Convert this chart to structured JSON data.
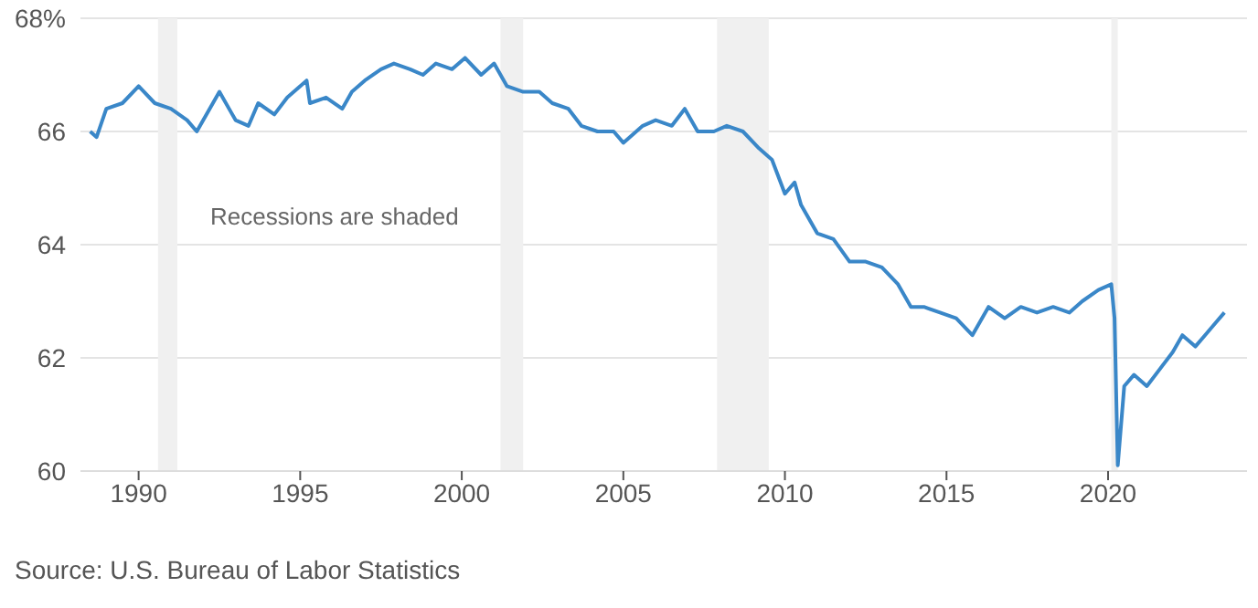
{
  "chart_data": {
    "type": "line",
    "x": [
      1988.5,
      1988.7,
      1989.0,
      1989.5,
      1990.0,
      1990.5,
      1991.0,
      1991.5,
      1991.8,
      1992.5,
      1993.0,
      1993.4,
      1993.7,
      1994.2,
      1994.6,
      1995.2,
      1995.3,
      1995.8,
      1996.3,
      1996.6,
      1997.0,
      1997.5,
      1997.9,
      1998.4,
      1998.8,
      1999.2,
      1999.7,
      2000.1,
      2000.6,
      2001.0,
      2001.4,
      2001.9,
      2002.4,
      2002.8,
      2003.3,
      2003.7,
      2004.2,
      2004.7,
      2005.0,
      2005.6,
      2006.0,
      2006.5,
      2006.9,
      2007.3,
      2007.8,
      2008.2,
      2008.7,
      2009.2,
      2009.6,
      2010.0,
      2010.3,
      2010.5,
      2011.0,
      2011.5,
      2012.0,
      2012.5,
      2013.0,
      2013.5,
      2013.9,
      2014.3,
      2014.8,
      2015.3,
      2015.8,
      2016.3,
      2016.8,
      2017.3,
      2017.8,
      2018.3,
      2018.8,
      2019.2,
      2019.7,
      2020.1,
      2020.2,
      2020.3,
      2020.5,
      2020.8,
      2021.2,
      2021.6,
      2022.0,
      2022.3,
      2022.7,
      2023.0,
      2023.3,
      2023.6
    ],
    "series": [
      {
        "color": "#3a87c8",
        "values": [
          66.0,
          65.9,
          66.4,
          66.5,
          66.8,
          66.5,
          66.4,
          66.2,
          66.0,
          66.7,
          66.2,
          66.1,
          66.5,
          66.3,
          66.6,
          66.9,
          66.5,
          66.6,
          66.4,
          66.7,
          66.9,
          67.1,
          67.2,
          67.1,
          67.0,
          67.2,
          67.1,
          67.3,
          67.0,
          67.2,
          66.8,
          66.7,
          66.7,
          66.5,
          66.4,
          66.1,
          66.0,
          66.0,
          65.8,
          66.1,
          66.2,
          66.1,
          66.4,
          66.0,
          66.0,
          66.1,
          66.0,
          65.7,
          65.5,
          64.9,
          65.1,
          64.7,
          64.2,
          64.1,
          63.7,
          63.7,
          63.6,
          63.3,
          62.9,
          62.9,
          62.8,
          62.7,
          62.4,
          62.9,
          62.7,
          62.9,
          62.8,
          62.9,
          62.8,
          63.0,
          63.2,
          63.3,
          62.7,
          60.1,
          61.5,
          61.7,
          61.5,
          61.8,
          62.1,
          62.4,
          62.2,
          62.4,
          62.6,
          62.8
        ]
      }
    ],
    "xlim": [
      1988.2,
      2024.3
    ],
    "xticks": [
      1990,
      1995,
      2000,
      2005,
      2010,
      2015,
      2020
    ],
    "ylim": [
      60,
      68
    ],
    "yticks": [
      60,
      62,
      64,
      66,
      {
        "value": 68,
        "label": "68%"
      }
    ],
    "grid": "y",
    "legend": false,
    "marker": "none",
    "line_style": "solid",
    "bands": [
      {
        "axis": "x",
        "from": 1990.6,
        "to": 1991.2,
        "color": "#f0f0f0"
      },
      {
        "axis": "x",
        "from": 2001.2,
        "to": 2001.9,
        "color": "#f0f0f0"
      },
      {
        "axis": "x",
        "from": 2007.9,
        "to": 2009.5,
        "color": "#f0f0f0"
      },
      {
        "axis": "x",
        "from": 2020.1,
        "to": 2020.3,
        "color": "#f0f0f0"
      }
    ],
    "annotations": [
      "Recessions are shaded",
      "Source: U.S. Bureau of Labor Statistics"
    ]
  }
}
